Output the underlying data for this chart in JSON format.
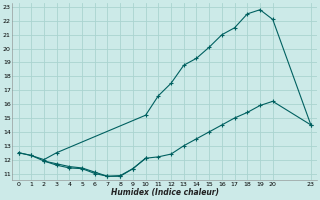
{
  "xlabel": "Humidex (Indice chaleur)",
  "bg_color": "#cceae8",
  "grid_color": "#aad4d0",
  "line_color": "#006060",
  "xlim": [
    -0.5,
    23.5
  ],
  "ylim": [
    10.5,
    23.3
  ],
  "xticks": [
    0,
    1,
    2,
    3,
    4,
    5,
    6,
    7,
    8,
    9,
    10,
    11,
    12,
    13,
    14,
    15,
    16,
    17,
    18,
    19,
    20,
    23
  ],
  "yticks": [
    11,
    12,
    13,
    14,
    15,
    16,
    17,
    18,
    19,
    20,
    21,
    22,
    23
  ],
  "line1_x": [
    0,
    1,
    2,
    3,
    10,
    11,
    12,
    13,
    14,
    15,
    16,
    17,
    18,
    19,
    20,
    23
  ],
  "line1_y": [
    12.5,
    12.3,
    12.0,
    12.5,
    15.2,
    16.6,
    17.5,
    18.8,
    19.3,
    20.1,
    21.0,
    21.5,
    22.5,
    22.8,
    22.1,
    14.5
  ],
  "line2_x": [
    0,
    1,
    2,
    3,
    4,
    5,
    6,
    7,
    8,
    9,
    10,
    11,
    12,
    13,
    14,
    15,
    16,
    17,
    18,
    19,
    20,
    23
  ],
  "line2_y": [
    12.5,
    12.3,
    11.9,
    11.7,
    11.5,
    11.4,
    11.1,
    10.8,
    10.8,
    11.35,
    12.1,
    12.2,
    12.4,
    13.0,
    13.5,
    14.0,
    14.5,
    15.0,
    15.4,
    15.9,
    16.2,
    14.5
  ],
  "line3_x": [
    2,
    3,
    4,
    5,
    6,
    7,
    8,
    9,
    10
  ],
  "line3_y": [
    11.9,
    11.6,
    11.4,
    11.35,
    11.0,
    10.8,
    10.85,
    11.35,
    12.1
  ]
}
